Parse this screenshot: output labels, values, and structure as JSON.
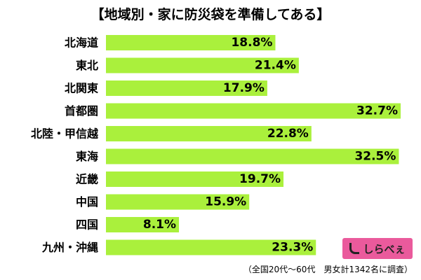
{
  "chart_data": {
    "type": "bar",
    "orientation": "horizontal",
    "title": "【地域別・家に防災袋を準備してある】",
    "categories": [
      "北海道",
      "東北",
      "北関東",
      "首都圏",
      "北陸・甲信越",
      "東海",
      "近畿",
      "中国",
      "四国",
      "九州・沖縄"
    ],
    "values": [
      18.8,
      21.4,
      17.9,
      32.7,
      22.8,
      32.5,
      19.7,
      15.9,
      8.1,
      23.3
    ],
    "value_labels": [
      "18.8%",
      "21.4%",
      "17.9%",
      "32.7%",
      "22.8%",
      "32.5%",
      "19.7%",
      "15.9%",
      "8.1%",
      "23.3%"
    ],
    "bar_color": "#aaf03c",
    "grid": false,
    "legend": "none"
  },
  "logo": {
    "text": "しらべぇ"
  },
  "footnote": "（全国20代～60代　男女計1342名に調査）"
}
